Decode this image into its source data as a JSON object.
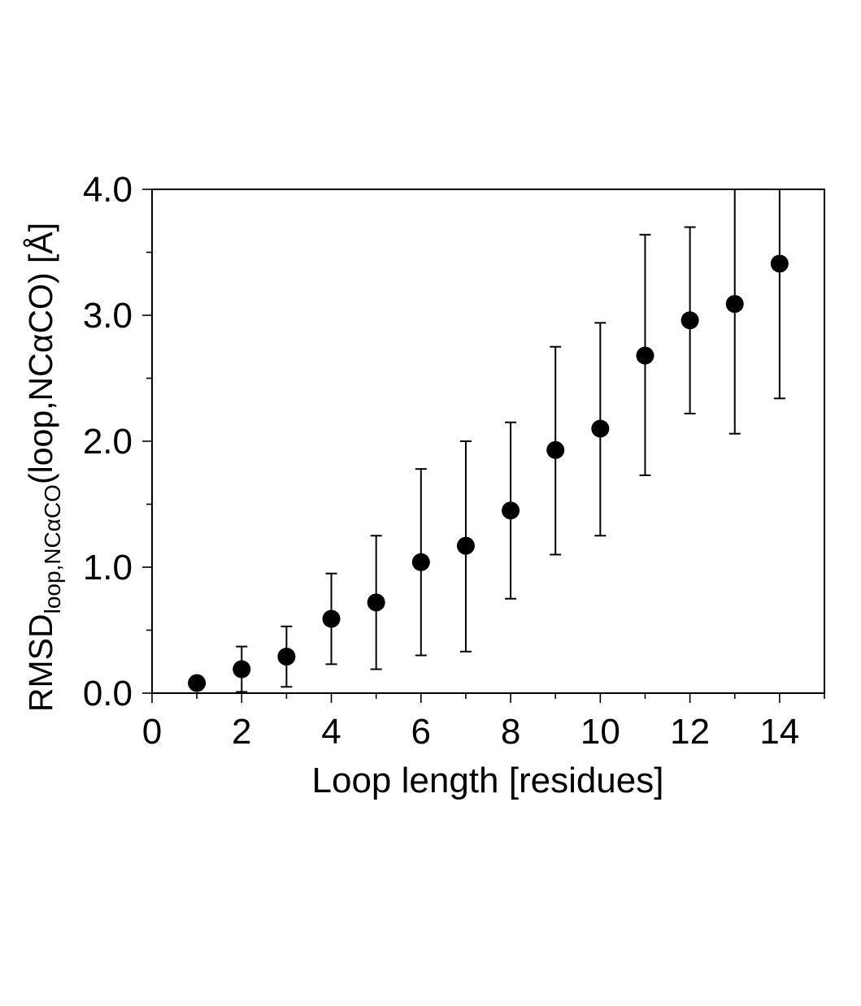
{
  "chart_data": {
    "type": "scatter",
    "title": "",
    "xlabel": "Loop length [residues]",
    "ylabel": {
      "main": "RMSD",
      "subscript": "loop,NCαCO",
      "rest": "(loop,NCαCO) [Å]"
    },
    "xlim": [
      0,
      15
    ],
    "ylim": [
      0,
      4
    ],
    "x_ticks": [
      "0",
      "2",
      "4",
      "6",
      "8",
      "10",
      "12",
      "14"
    ],
    "y_ticks": [
      "0.0",
      "1.0",
      "2.0",
      "3.0",
      "4.0"
    ],
    "grid": false,
    "marker_color": "#000000",
    "x": [
      1,
      2,
      3,
      4,
      5,
      6,
      7,
      8,
      9,
      10,
      11,
      12,
      13,
      14
    ],
    "y": [
      0.08,
      0.19,
      0.29,
      0.59,
      0.72,
      1.04,
      1.17,
      1.45,
      1.93,
      2.1,
      2.68,
      2.96,
      3.09,
      3.41
    ],
    "err_low": [
      null,
      0.01,
      0.05,
      0.23,
      0.19,
      0.3,
      0.33,
      0.75,
      1.1,
      1.25,
      1.73,
      2.22,
      2.06,
      2.34
    ],
    "err_high": [
      null,
      0.37,
      0.53,
      0.95,
      1.25,
      1.78,
      2.0,
      2.15,
      2.75,
      2.94,
      3.64,
      3.7,
      4.0,
      4.0
    ]
  }
}
